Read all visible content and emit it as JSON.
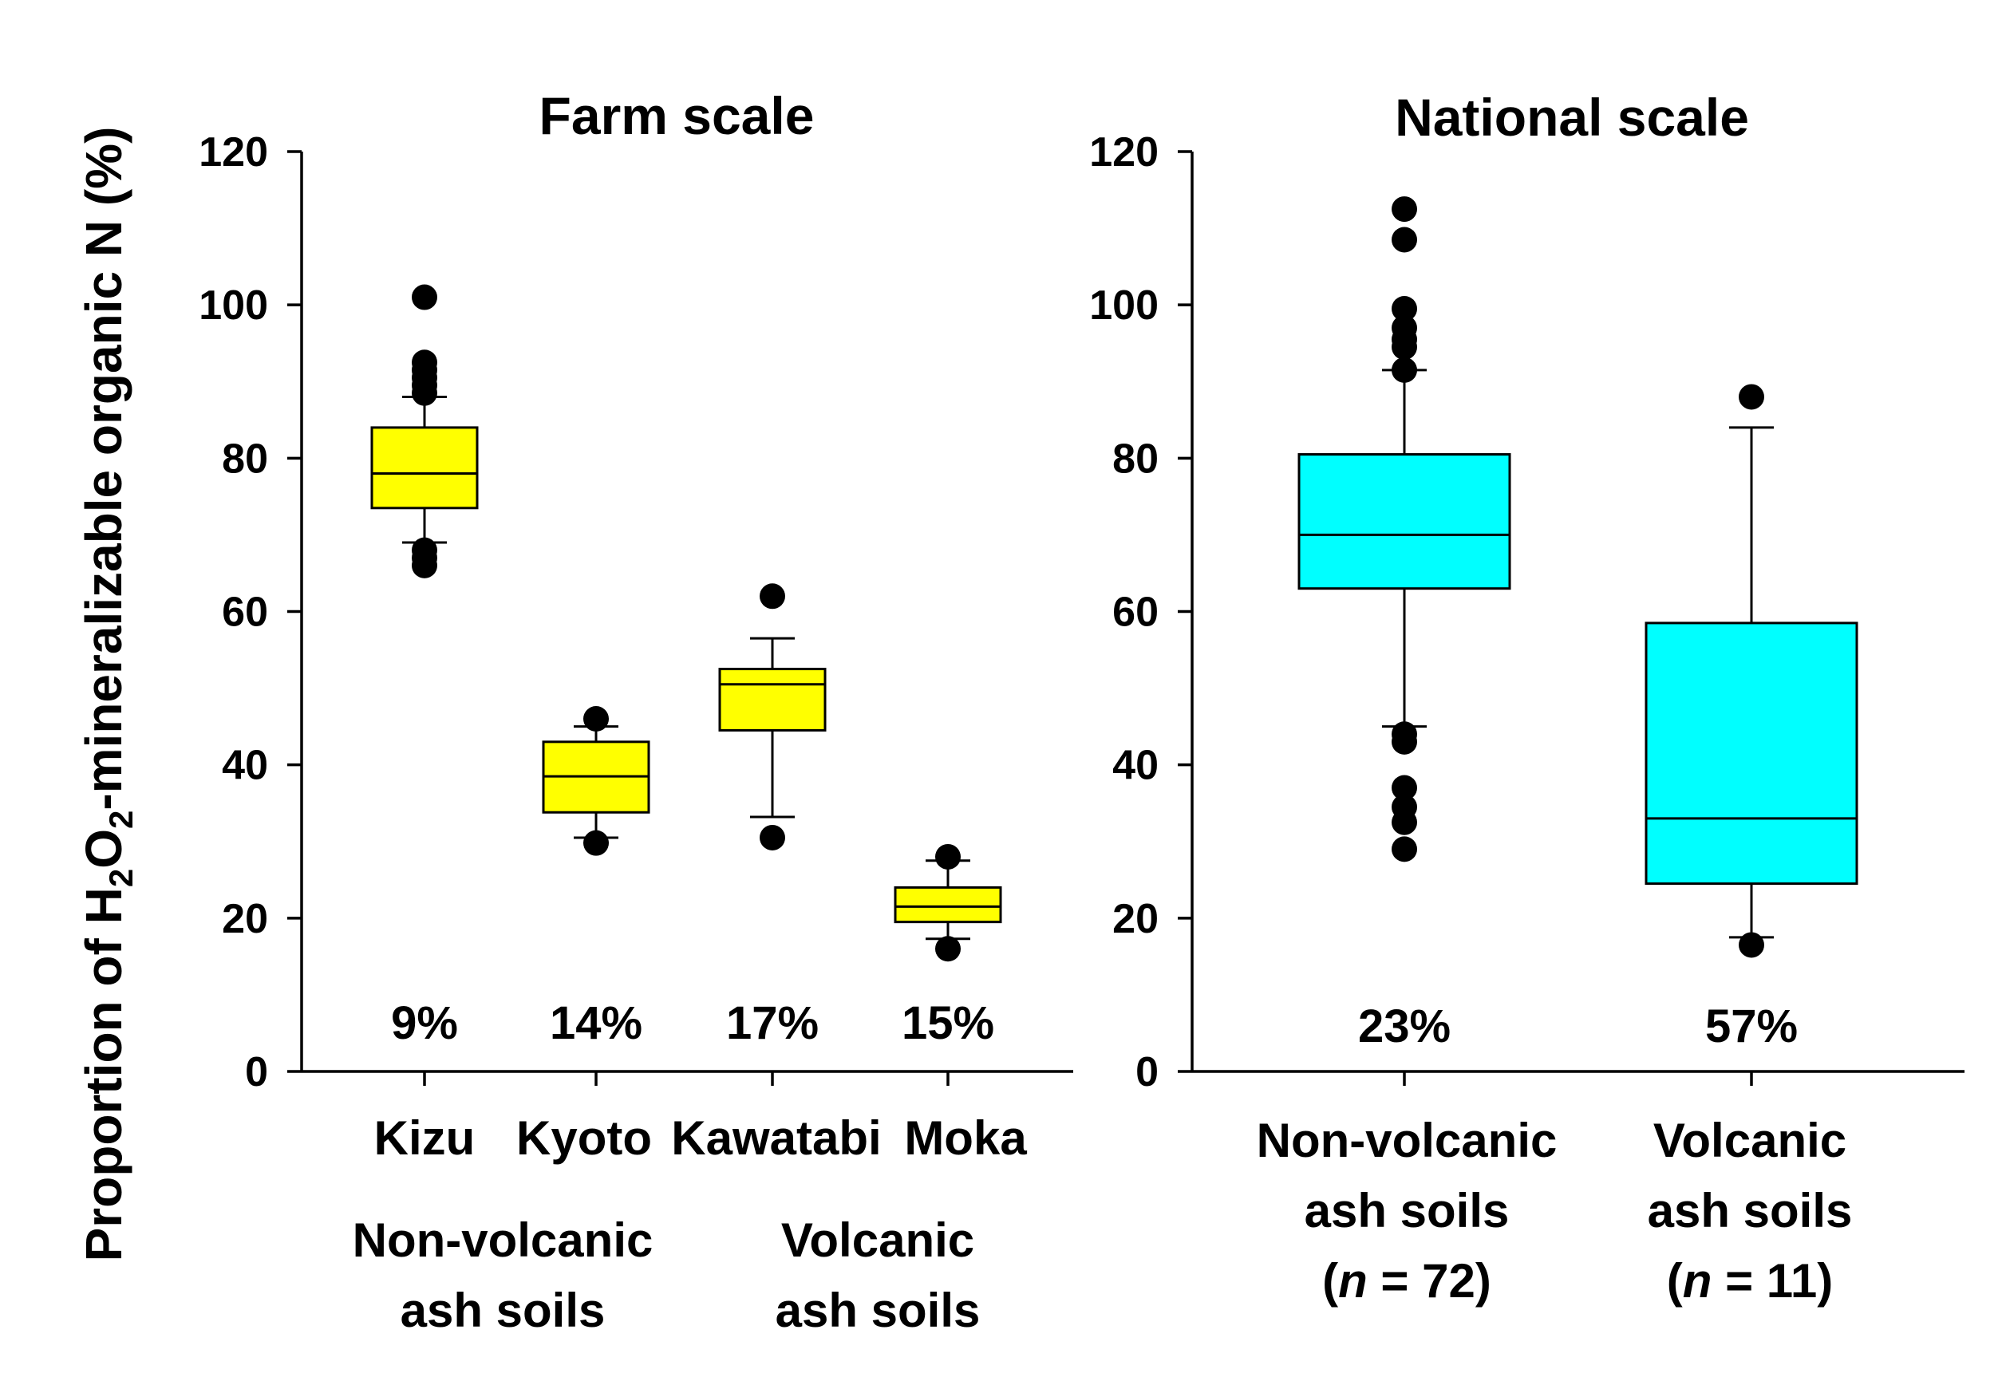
{
  "y_axis_label": {
    "prefix": "Proportion of H",
    "sub1": "2",
    "mid": "O",
    "sub2": "2",
    "suffix": "-mineralizable organic N (%)"
  },
  "colors": {
    "farm_box": "#ffff00",
    "national_box": "#00ffff",
    "line": "#000000"
  },
  "chart_data": [
    {
      "type": "box",
      "title": "Farm scale",
      "ylim": [
        0,
        120
      ],
      "yticks": [
        0,
        20,
        40,
        60,
        80,
        100,
        120
      ],
      "categories": [
        "Kizu",
        "Kyoto",
        "Kawatabi",
        "Moka"
      ],
      "cv_labels": [
        "9%",
        "14%",
        "17%",
        "15%"
      ],
      "groups": [
        {
          "line1": "Non-volcanic",
          "line2": "ash soils"
        },
        {
          "line1": "Volcanic",
          "line2": "ash soils"
        }
      ],
      "boxes": [
        {
          "q1": 73.5,
          "median": 78,
          "q3": 84,
          "whisker_low": 69,
          "whisker_high": 88,
          "outliers": [
            101,
            92.5,
            91.5,
            90.5,
            89.5,
            88.5,
            68,
            67,
            66
          ]
        },
        {
          "q1": 33.8,
          "median": 38.5,
          "q3": 43,
          "whisker_low": 30.5,
          "whisker_high": 45,
          "outliers": [
            46,
            29.8
          ]
        },
        {
          "q1": 44.5,
          "median": 50.5,
          "q3": 52.5,
          "whisker_low": 33.2,
          "whisker_high": 56.5,
          "outliers": [
            62,
            30.5
          ]
        },
        {
          "q1": 19.5,
          "median": 21.5,
          "q3": 24,
          "whisker_low": 17.3,
          "whisker_high": 27.5,
          "outliers": [
            28,
            16
          ]
        }
      ]
    },
    {
      "type": "box",
      "title": "National scale",
      "ylim": [
        0,
        120
      ],
      "yticks": [
        0,
        20,
        40,
        60,
        80,
        100,
        120
      ],
      "categories": [
        {
          "line1": "Non-volcanic",
          "line2": "ash soils",
          "n_prefix": "(",
          "n_symbol": "n",
          "n_suffix": " = 72)"
        },
        {
          "line1": "Volcanic",
          "line2": "ash soils",
          "n_prefix": "(",
          "n_symbol": "n",
          "n_suffix": " = 11)"
        }
      ],
      "cv_labels": [
        "23%",
        "57%"
      ],
      "boxes": [
        {
          "q1": 63,
          "median": 70,
          "q3": 80.5,
          "whisker_low": 45,
          "whisker_high": 91.5,
          "outliers": [
            112.5,
            108.5,
            99.5,
            97,
            95.5,
            94.5,
            91.5,
            44,
            43,
            37,
            34.5,
            32.5,
            29
          ]
        },
        {
          "q1": 24.5,
          "median": 33,
          "q3": 58.5,
          "whisker_low": 17.5,
          "whisker_high": 84,
          "outliers": [
            88,
            16.5
          ]
        }
      ]
    }
  ]
}
